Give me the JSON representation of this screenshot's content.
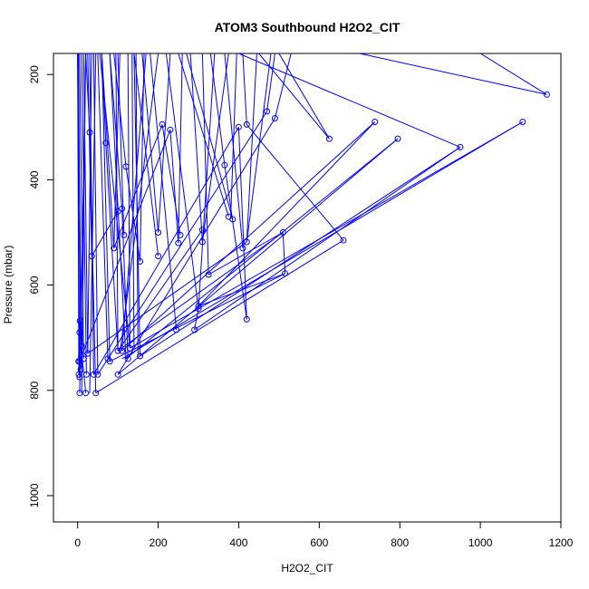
{
  "chart_data": {
    "type": "scatter",
    "title": "ATOM3 Southbound H2O2_CIT",
    "xlabel": "H2O2_CIT",
    "ylabel": "Pressure (mbar)",
    "xlim": [
      -60,
      1200
    ],
    "ylim": [
      1050,
      160
    ],
    "x_ticks": [
      0,
      200,
      400,
      600,
      800,
      1000,
      1200
    ],
    "y_ticks": [
      200,
      400,
      600,
      800,
      1000
    ],
    "grid": false,
    "series_color": "#0000ff",
    "points": [
      {
        "x": 1165,
        "y": 238
      },
      {
        "x": 1105,
        "y": 290
      },
      {
        "x": 950,
        "y": 338
      },
      {
        "x": 795,
        "y": 322
      },
      {
        "x": 738,
        "y": 290
      },
      {
        "x": 660,
        "y": 515
      },
      {
        "x": 625,
        "y": 322
      },
      {
        "x": 515,
        "y": 578
      },
      {
        "x": 510,
        "y": 500
      },
      {
        "x": 490,
        "y": 283
      },
      {
        "x": 470,
        "y": 270
      },
      {
        "x": 420,
        "y": 295
      },
      {
        "x": 420,
        "y": 518
      },
      {
        "x": 420,
        "y": 665
      },
      {
        "x": 410,
        "y": 530
      },
      {
        "x": 400,
        "y": 300
      },
      {
        "x": 385,
        "y": 475
      },
      {
        "x": 375,
        "y": 470
      },
      {
        "x": 365,
        "y": 372
      },
      {
        "x": 325,
        "y": 580
      },
      {
        "x": 310,
        "y": 495
      },
      {
        "x": 310,
        "y": 518
      },
      {
        "x": 300,
        "y": 640
      },
      {
        "x": 300,
        "y": 645
      },
      {
        "x": 290,
        "y": 685
      },
      {
        "x": 255,
        "y": 505
      },
      {
        "x": 250,
        "y": 520
      },
      {
        "x": 245,
        "y": 685
      },
      {
        "x": 230,
        "y": 305
      },
      {
        "x": 210,
        "y": 295
      },
      {
        "x": 200,
        "y": 500
      },
      {
        "x": 200,
        "y": 545
      },
      {
        "x": 155,
        "y": 555
      },
      {
        "x": 155,
        "y": 735
      },
      {
        "x": 130,
        "y": 720
      },
      {
        "x": 125,
        "y": 740
      },
      {
        "x": 120,
        "y": 375
      },
      {
        "x": 115,
        "y": 505
      },
      {
        "x": 110,
        "y": 455
      },
      {
        "x": 110,
        "y": 725
      },
      {
        "x": 100,
        "y": 460
      },
      {
        "x": 100,
        "y": 725
      },
      {
        "x": 100,
        "y": 770
      },
      {
        "x": 90,
        "y": 530
      },
      {
        "x": 80,
        "y": 745
      },
      {
        "x": 75,
        "y": 740
      },
      {
        "x": 70,
        "y": 330
      },
      {
        "x": 50,
        "y": 770
      },
      {
        "x": 45,
        "y": 805
      },
      {
        "x": 40,
        "y": 770
      },
      {
        "x": 35,
        "y": 545
      },
      {
        "x": 30,
        "y": 310
      },
      {
        "x": 25,
        "y": 730
      },
      {
        "x": 22,
        "y": 770
      },
      {
        "x": 20,
        "y": 805
      },
      {
        "x": 15,
        "y": 740
      },
      {
        "x": 10,
        "y": 715
      },
      {
        "x": 8,
        "y": 760
      },
      {
        "x": 6,
        "y": 668
      },
      {
        "x": 5,
        "y": 690
      },
      {
        "x": 5,
        "y": 745
      },
      {
        "x": 5,
        "y": 775
      },
      {
        "x": 5,
        "y": 805
      },
      {
        "x": 3,
        "y": 770
      },
      {
        "x": 2,
        "y": 745
      }
    ],
    "segments": [
      [
        1165,
        238,
        1000,
        160
      ],
      [
        1165,
        238,
        700,
        160
      ],
      [
        1105,
        290,
        110,
        740
      ],
      [
        1105,
        290,
        130,
        720
      ],
      [
        950,
        338,
        400,
        160
      ],
      [
        950,
        338,
        155,
        735
      ],
      [
        950,
        338,
        290,
        685
      ],
      [
        795,
        322,
        100,
        770
      ],
      [
        795,
        322,
        120,
        740
      ],
      [
        738,
        290,
        300,
        640
      ],
      [
        738,
        290,
        110,
        725
      ],
      [
        660,
        515,
        420,
        295
      ],
      [
        660,
        515,
        45,
        805
      ],
      [
        625,
        322,
        500,
        160
      ],
      [
        625,
        322,
        450,
        160
      ],
      [
        515,
        578,
        510,
        500
      ],
      [
        515,
        578,
        80,
        745
      ],
      [
        510,
        500,
        100,
        725
      ],
      [
        490,
        283,
        100,
        770
      ],
      [
        490,
        283,
        530,
        160
      ],
      [
        470,
        270,
        50,
        770
      ],
      [
        420,
        295,
        410,
        160
      ],
      [
        420,
        518,
        25,
        730
      ],
      [
        420,
        518,
        445,
        160
      ],
      [
        420,
        665,
        400,
        300
      ],
      [
        420,
        665,
        365,
        372
      ],
      [
        410,
        530,
        365,
        160
      ],
      [
        400,
        300,
        40,
        770
      ],
      [
        385,
        475,
        270,
        160
      ],
      [
        375,
        470,
        250,
        160
      ],
      [
        365,
        372,
        330,
        160
      ],
      [
        325,
        580,
        310,
        160
      ],
      [
        325,
        580,
        510,
        500
      ],
      [
        310,
        495,
        100,
        725
      ],
      [
        310,
        518,
        280,
        160
      ],
      [
        300,
        640,
        515,
        578
      ],
      [
        300,
        645,
        220,
        160
      ],
      [
        290,
        685,
        300,
        645
      ],
      [
        255,
        505,
        210,
        295
      ],
      [
        250,
        520,
        230,
        305
      ],
      [
        245,
        685,
        180,
        160
      ],
      [
        230,
        305,
        5,
        745
      ],
      [
        210,
        295,
        90,
        530
      ],
      [
        200,
        500,
        160,
        160
      ],
      [
        200,
        545,
        140,
        160
      ],
      [
        155,
        555,
        120,
        375
      ],
      [
        155,
        735,
        140,
        160
      ],
      [
        130,
        720,
        125,
        160
      ],
      [
        125,
        740,
        110,
        455
      ],
      [
        120,
        375,
        90,
        160
      ],
      [
        115,
        505,
        100,
        160
      ],
      [
        110,
        455,
        80,
        160
      ],
      [
        100,
        460,
        35,
        545
      ],
      [
        100,
        725,
        70,
        330
      ],
      [
        90,
        530,
        60,
        160
      ],
      [
        80,
        745,
        60,
        160
      ],
      [
        75,
        740,
        50,
        160
      ],
      [
        70,
        330,
        60,
        160
      ],
      [
        50,
        770,
        40,
        160
      ],
      [
        45,
        805,
        30,
        310
      ],
      [
        40,
        770,
        30,
        160
      ],
      [
        35,
        545,
        25,
        160
      ],
      [
        30,
        310,
        20,
        160
      ],
      [
        25,
        730,
        15,
        160
      ],
      [
        22,
        770,
        10,
        160
      ],
      [
        20,
        805,
        5,
        690
      ],
      [
        15,
        740,
        5,
        160
      ],
      [
        10,
        715,
        0,
        160
      ],
      [
        8,
        760,
        2,
        160
      ],
      [
        6,
        668,
        2,
        745
      ],
      [
        5,
        775,
        0,
        160
      ],
      [
        3,
        770,
        0,
        160
      ],
      [
        150,
        735,
        145,
        160
      ],
      [
        140,
        720,
        135,
        160
      ],
      [
        100,
        725,
        95,
        160
      ],
      [
        25,
        730,
        35,
        160
      ],
      [
        30,
        805,
        45,
        160
      ],
      [
        10,
        805,
        20,
        160
      ],
      [
        5,
        805,
        20,
        160
      ],
      [
        130,
        720,
        55,
        160
      ],
      [
        120,
        740,
        80,
        160
      ],
      [
        110,
        725,
        170,
        160
      ],
      [
        105,
        730,
        200,
        160
      ],
      [
        250,
        520,
        260,
        160
      ],
      [
        300,
        645,
        340,
        160
      ],
      [
        310,
        518,
        375,
        160
      ],
      [
        380,
        472,
        395,
        160
      ],
      [
        420,
        518,
        480,
        160
      ],
      [
        470,
        270,
        490,
        160
      ],
      [
        200,
        500,
        230,
        160
      ],
      [
        155,
        555,
        165,
        160
      ],
      [
        90,
        530,
        105,
        160
      ]
    ]
  }
}
